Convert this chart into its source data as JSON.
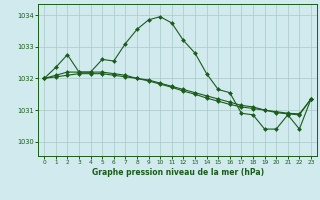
{
  "bg_color": "#d0eaee",
  "grid_color": "#b0cece",
  "line_color": "#1a5c1a",
  "marker_color": "#1a5c1a",
  "title": "Graphe pression niveau de la mer (hPa)",
  "title_color": "#1a5c1a",
  "ylim": [
    1029.55,
    1034.35
  ],
  "yticks": [
    1030,
    1031,
    1032,
    1033,
    1034
  ],
  "xlim": [
    -0.5,
    23.5
  ],
  "xticks": [
    0,
    1,
    2,
    3,
    4,
    5,
    6,
    7,
    8,
    9,
    10,
    11,
    12,
    13,
    14,
    15,
    16,
    17,
    18,
    19,
    20,
    21,
    22,
    23
  ],
  "series": [
    {
      "x": [
        0,
        1,
        2,
        3,
        4,
        5,
        6,
        7,
        8,
        9,
        10,
        11,
        12,
        13,
        14,
        15,
        16,
        17,
        18,
        19,
        20,
        21,
        22,
        23
      ],
      "y": [
        1032.0,
        1032.35,
        1032.75,
        1032.2,
        1032.2,
        1032.6,
        1032.55,
        1033.1,
        1033.55,
        1033.85,
        1033.95,
        1033.75,
        1033.2,
        1032.8,
        1032.15,
        1031.65,
        1031.55,
        1030.9,
        1030.85,
        1030.4,
        1030.4,
        1030.85,
        1030.4,
        1031.35
      ]
    },
    {
      "x": [
        0,
        23
      ],
      "y": [
        1032.0,
        1031.35
      ]
    },
    {
      "x": [
        0,
        23
      ],
      "y": [
        1032.0,
        1031.35
      ]
    }
  ],
  "line2": {
    "x": [
      0,
      1,
      2,
      3,
      4,
      5,
      6,
      7,
      8,
      9,
      10,
      11,
      12,
      13,
      14,
      15,
      16,
      17,
      18,
      19,
      20,
      21,
      22,
      23
    ],
    "y": [
      1032.0,
      1032.1,
      1032.2,
      1032.2,
      1032.2,
      1032.2,
      1032.15,
      1032.1,
      1032.0,
      1031.95,
      1031.85,
      1031.75,
      1031.65,
      1031.55,
      1031.45,
      1031.35,
      1031.25,
      1031.15,
      1031.1,
      1031.0,
      1030.95,
      1030.9,
      1030.88,
      1031.35
    ]
  },
  "line3": {
    "x": [
      0,
      1,
      2,
      3,
      4,
      5,
      6,
      7,
      8,
      9,
      10,
      11,
      12,
      13,
      14,
      15,
      16,
      17,
      18,
      19,
      20,
      21,
      22,
      23
    ],
    "y": [
      1032.0,
      1032.05,
      1032.1,
      1032.15,
      1032.15,
      1032.15,
      1032.1,
      1032.05,
      1032.0,
      1031.92,
      1031.82,
      1031.72,
      1031.6,
      1031.5,
      1031.38,
      1031.28,
      1031.18,
      1031.1,
      1031.05,
      1031.0,
      1030.92,
      1030.88,
      1030.85,
      1031.35
    ]
  }
}
